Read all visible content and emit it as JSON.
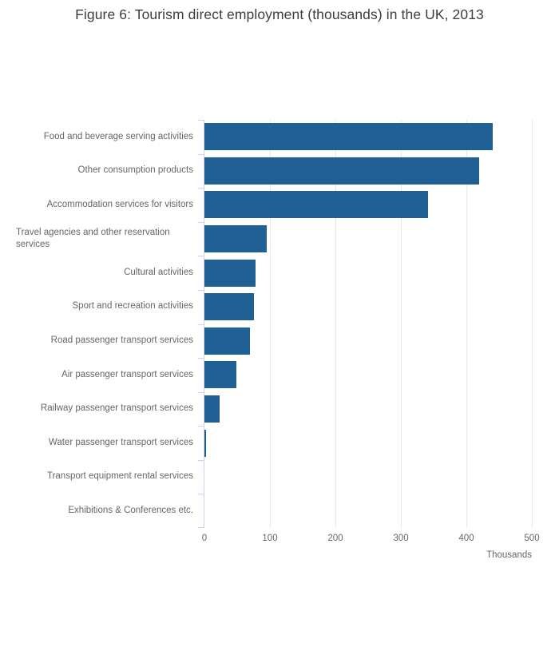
{
  "title": "Figure 6: Tourism direct employment (thousands) in the UK, 2013",
  "chart_data": {
    "type": "bar",
    "orientation": "horizontal",
    "title": "Figure 6: Tourism direct employment (thousands) in the UK, 2013",
    "categories": [
      "Food and beverage serving activities",
      "Other consumption products",
      "Accommodation services for visitors",
      "Travel agencies and other reservation\nservices",
      "Cultural activities",
      "Sport and recreation activities",
      "Road passenger transport services",
      "Air passenger transport services",
      "Railway passenger transport services",
      "Water passenger transport services",
      "Transport equipment rental services",
      "Exhibitions & Conferences etc."
    ],
    "values": [
      440,
      419,
      342,
      95,
      78,
      76,
      69,
      49,
      23,
      3,
      0,
      0
    ],
    "xlabel": "Thousands",
    "ylabel": "",
    "xlim": [
      0,
      500
    ],
    "x_ticks": [
      0,
      100,
      200,
      300,
      400,
      500
    ],
    "grid": true,
    "legend": "none",
    "bar_color": "#206095",
    "axis_line_color": "#c9d4ea",
    "gridline_color": "#e8e8e8",
    "label_color": "#666666",
    "title_color": "#3d3d3d"
  }
}
